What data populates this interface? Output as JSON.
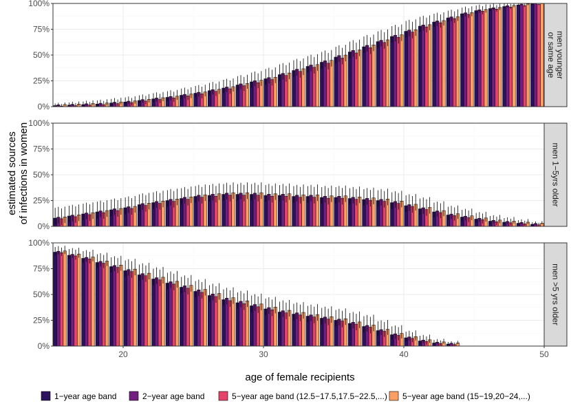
{
  "chart_data": {
    "type": "bar",
    "xlabel": "age of female recipients",
    "ylabel_lines": [
      "estimated sources",
      "of infections in women"
    ],
    "xlim": [
      15,
      50
    ],
    "ylim": [
      0,
      1
    ],
    "x_ticks": [
      20,
      30,
      40,
      50
    ],
    "x_tick_labels": [
      "20",
      "30",
      "40",
      "50"
    ],
    "y_ticks": [
      0,
      0.25,
      0.5,
      0.75,
      1
    ],
    "y_tick_labels": [
      "0%",
      "25%",
      "50%",
      "75%",
      "100%"
    ],
    "grid": true,
    "legend_position": "bottom",
    "colors": {
      "series": [
        "#2c115f",
        "#721f81",
        "#e5446a",
        "#fc9f65"
      ],
      "strip_bg": "#d9d9d9",
      "strip_border": "#333333",
      "panel_border": "#333333",
      "grid_major": "#ebebeb",
      "grid_minor": "#f5f5f5"
    },
    "legend": [
      "1−year age band",
      "2−year age band",
      "5−year age band (12.5−17.5,17.5−22.5,...)",
      "5−year age band (15−19,20−24,...)"
    ],
    "panels": [
      {
        "label_lines": [
          "men younger",
          "or same age"
        ],
        "ages": [
          15,
          16,
          17,
          18,
          19,
          20,
          21,
          22,
          23,
          24,
          25,
          26,
          27,
          28,
          29,
          30,
          31,
          32,
          33,
          34,
          35,
          36,
          37,
          38,
          39,
          40,
          41,
          42,
          43,
          44,
          45,
          46,
          47,
          48,
          49
        ],
        "values": [
          0.01,
          0.015,
          0.02,
          0.025,
          0.035,
          0.045,
          0.06,
          0.075,
          0.09,
          0.11,
          0.13,
          0.155,
          0.18,
          0.21,
          0.24,
          0.27,
          0.31,
          0.35,
          0.39,
          0.43,
          0.48,
          0.53,
          0.58,
          0.63,
          0.68,
          0.73,
          0.78,
          0.82,
          0.86,
          0.9,
          0.93,
          0.95,
          0.97,
          0.985,
          0.995
        ],
        "error": [
          0.02,
          0.025,
          0.03,
          0.035,
          0.04,
          0.045,
          0.05,
          0.055,
          0.06,
          0.065,
          0.07,
          0.075,
          0.08,
          0.085,
          0.09,
          0.095,
          0.1,
          0.1,
          0.1,
          0.1,
          0.1,
          0.1,
          0.1,
          0.1,
          0.1,
          0.1,
          0.09,
          0.08,
          0.07,
          0.06,
          0.05,
          0.04,
          0.03,
          0.02,
          0.01
        ]
      },
      {
        "label_lines": [
          "men 1−5yrs older"
        ],
        "ages": [
          15,
          16,
          17,
          18,
          19,
          20,
          21,
          22,
          23,
          24,
          25,
          26,
          27,
          28,
          29,
          30,
          31,
          32,
          33,
          34,
          35,
          36,
          37,
          38,
          39,
          40,
          41,
          42,
          43,
          44,
          45,
          46,
          47,
          48,
          49
        ],
        "values": [
          0.08,
          0.1,
          0.12,
          0.14,
          0.16,
          0.18,
          0.21,
          0.23,
          0.25,
          0.27,
          0.29,
          0.3,
          0.31,
          0.31,
          0.31,
          0.3,
          0.3,
          0.29,
          0.29,
          0.28,
          0.28,
          0.27,
          0.26,
          0.25,
          0.23,
          0.2,
          0.17,
          0.14,
          0.11,
          0.09,
          0.07,
          0.05,
          0.04,
          0.03,
          0.02
        ],
        "error": [
          0.1,
          0.1,
          0.1,
          0.1,
          0.1,
          0.1,
          0.1,
          0.1,
          0.1,
          0.1,
          0.1,
          0.1,
          0.1,
          0.1,
          0.1,
          0.1,
          0.1,
          0.1,
          0.1,
          0.1,
          0.1,
          0.1,
          0.1,
          0.1,
          0.1,
          0.1,
          0.1,
          0.09,
          0.08,
          0.07,
          0.06,
          0.05,
          0.04,
          0.03,
          0.02
        ]
      },
      {
        "label_lines": [
          "men >5 yrs older"
        ],
        "ages": [
          15,
          16,
          17,
          18,
          19,
          20,
          21,
          22,
          23,
          24,
          25,
          26,
          27,
          28,
          29,
          30,
          31,
          32,
          33,
          34,
          35,
          36,
          37,
          38,
          39,
          40,
          41,
          42,
          43
        ],
        "values": [
          0.91,
          0.88,
          0.85,
          0.81,
          0.77,
          0.73,
          0.69,
          0.65,
          0.61,
          0.57,
          0.53,
          0.49,
          0.45,
          0.42,
          0.39,
          0.36,
          0.33,
          0.31,
          0.29,
          0.27,
          0.25,
          0.22,
          0.19,
          0.15,
          0.11,
          0.08,
          0.05,
          0.03,
          0.02
        ],
        "error": [
          0.05,
          0.06,
          0.07,
          0.08,
          0.09,
          0.1,
          0.1,
          0.1,
          0.1,
          0.1,
          0.1,
          0.1,
          0.1,
          0.1,
          0.1,
          0.1,
          0.1,
          0.1,
          0.1,
          0.1,
          0.1,
          0.1,
          0.1,
          0.09,
          0.08,
          0.06,
          0.05,
          0.03,
          0.02
        ]
      }
    ]
  }
}
